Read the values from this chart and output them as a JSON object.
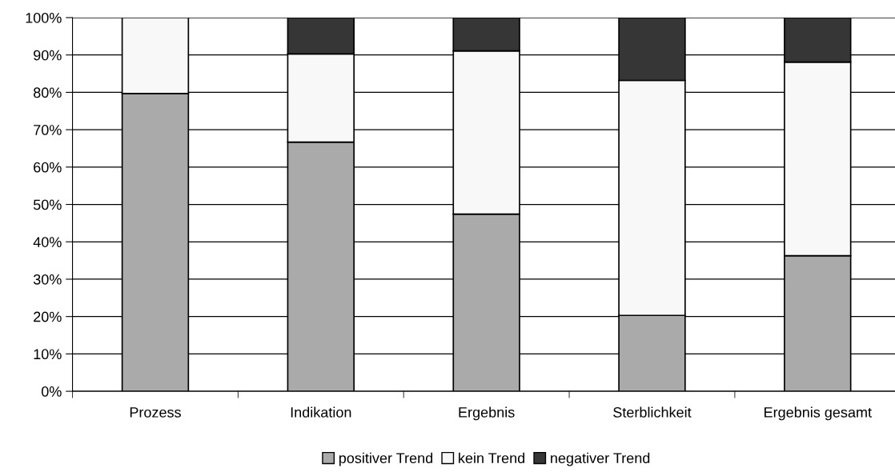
{
  "chart_data": {
    "type": "bar",
    "stacked": true,
    "categories": [
      "Prozess",
      "Indikation",
      "Ergebnis",
      "Sterblichkeit",
      "Ergebnis gesamt"
    ],
    "series": [
      {
        "name": "positiver Trend",
        "color": "#aaaaaa",
        "values": [
          79.7,
          66.7,
          47.4,
          20.3,
          36.3
        ]
      },
      {
        "name": "kein Trend",
        "color": "#f8f8f8",
        "values": [
          20.3,
          23.6,
          43.7,
          62.9,
          51.8
        ]
      },
      {
        "name": "negativer Trend",
        "color": "#363636",
        "values": [
          null,
          9.7,
          8.9,
          16.8,
          11.9
        ]
      }
    ],
    "ylim": [
      0,
      100
    ],
    "yticks": [
      {
        "value": 0,
        "label": "0%"
      },
      {
        "value": 10,
        "label": "10%"
      },
      {
        "value": 20,
        "label": "20%"
      },
      {
        "value": 30,
        "label": "30%"
      },
      {
        "value": 40,
        "label": "40%"
      },
      {
        "value": 50,
        "label": "50%"
      },
      {
        "value": 60,
        "label": "60%"
      },
      {
        "value": 70,
        "label": "70%"
      },
      {
        "value": 80,
        "label": "80%"
      },
      {
        "value": 90,
        "label": "90%"
      },
      {
        "value": 100,
        "label": "100%"
      }
    ],
    "grid": "y",
    "legend": "bottom"
  }
}
